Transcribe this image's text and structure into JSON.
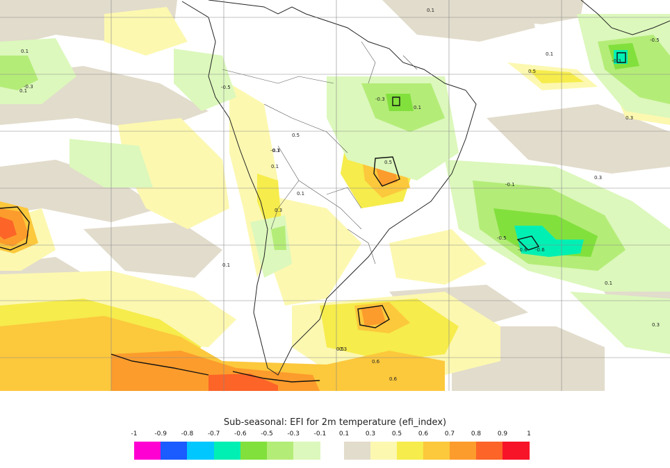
{
  "legend": {
    "title": "Sub-seasonal: EFI for 2m temperature (efi_index)",
    "negative_ticks": [
      "-1",
      "-0.9",
      "-0.8",
      "-0.7",
      "-0.6",
      "-0.5",
      "-0.3",
      "-0.1"
    ],
    "positive_ticks": [
      "0.1",
      "0.3",
      "0.5",
      "0.6",
      "0.7",
      "0.8",
      "0.9",
      "1"
    ],
    "negative_colors": [
      "#ff00d2",
      "#1a5cff",
      "#00c8ff",
      "#00f0b4",
      "#82e03c",
      "#b4ec78",
      "#dcf8bc"
    ],
    "positive_colors": [
      "#e2dccc",
      "#fcf8b0",
      "#f6ec4c",
      "#fcc83c",
      "#fc9c2c",
      "#fc6428",
      "#f81428"
    ]
  },
  "map": {
    "region": "South America and surrounding South Atlantic / South Pacific",
    "contour_labels": [
      "0.1",
      "0.1",
      "-0.3",
      "0.1",
      "0.1",
      "-0.1",
      "0.3",
      "0.5",
      "0.3",
      "-0.3",
      "0.5",
      "-0.1",
      "0.3",
      "0.1",
      "0.1",
      "0.3",
      "0.1",
      "-0.3",
      "0.3",
      "-0.5",
      "-0.6",
      "-0.6",
      "0.5",
      "0.6",
      "0.6",
      "0.5",
      "-0.5",
      "0.1",
      "0.1",
      "0.3",
      "-0.5"
    ]
  }
}
